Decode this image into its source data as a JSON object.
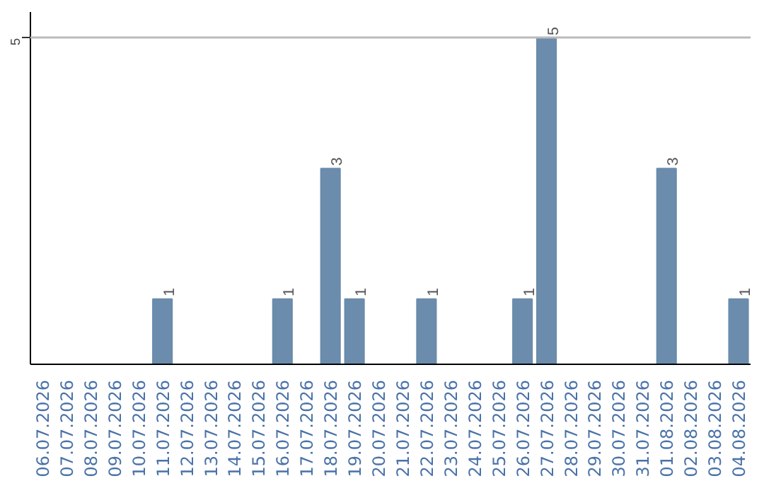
{
  "chart_data": {
    "type": "bar",
    "categories": [
      "06.07.2026",
      "07.07.2026",
      "08.07.2026",
      "09.07.2026",
      "10.07.2026",
      "11.07.2026",
      "12.07.2026",
      "13.07.2026",
      "14.07.2026",
      "15.07.2026",
      "16.07.2026",
      "17.07.2026",
      "18.07.2026",
      "19.07.2026",
      "20.07.2026",
      "21.07.2026",
      "22.07.2026",
      "23.07.2026",
      "24.07.2026",
      "25.07.2026",
      "26.07.2026",
      "27.07.2026",
      "28.07.2026",
      "29.07.2026",
      "30.07.2026",
      "31.07.2026",
      "01.08.2026",
      "02.08.2026",
      "03.08.2026",
      "04.08.2026"
    ],
    "values": [
      0,
      0,
      0,
      0,
      0,
      1,
      0,
      0,
      0,
      0,
      1,
      0,
      3,
      1,
      0,
      0,
      1,
      0,
      0,
      0,
      1,
      5,
      0,
      0,
      0,
      0,
      3,
      0,
      0,
      1
    ],
    "color": "#6b8cac",
    "ylim": [
      0,
      5.4
    ],
    "yticks": [
      5
    ],
    "grid": "y",
    "value_labels": [
      null,
      null,
      null,
      null,
      null,
      "1",
      null,
      null,
      null,
      null,
      "1",
      null,
      "3",
      "1",
      null,
      null,
      "1",
      null,
      null,
      null,
      "1",
      "5",
      null,
      null,
      null,
      null,
      "3",
      null,
      null,
      "1"
    ]
  }
}
